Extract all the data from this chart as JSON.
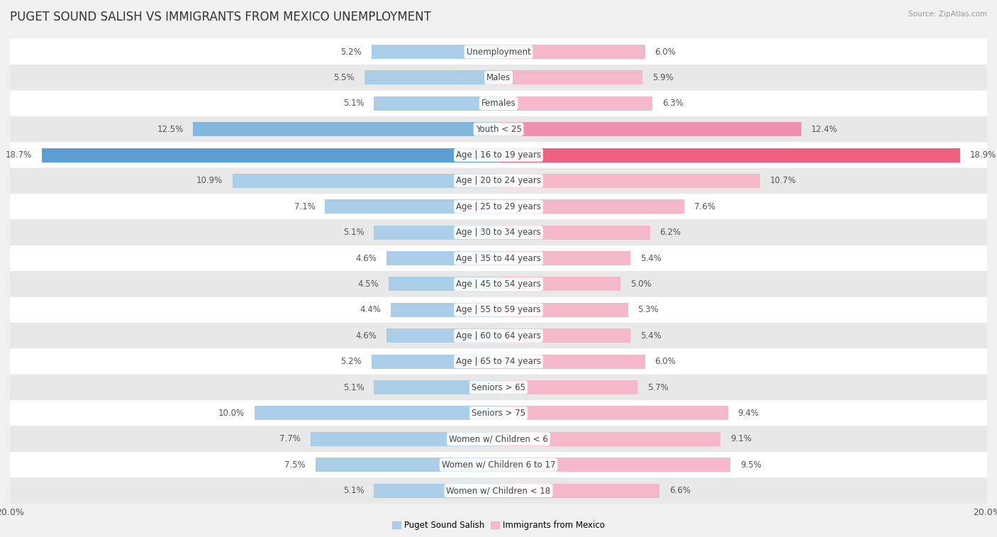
{
  "title": "PUGET SOUND SALISH VS IMMIGRANTS FROM MEXICO UNEMPLOYMENT",
  "source": "Source: ZipAtlas.com",
  "categories": [
    "Unemployment",
    "Males",
    "Females",
    "Youth < 25",
    "Age | 16 to 19 years",
    "Age | 20 to 24 years",
    "Age | 25 to 29 years",
    "Age | 30 to 34 years",
    "Age | 35 to 44 years",
    "Age | 45 to 54 years",
    "Age | 55 to 59 years",
    "Age | 60 to 64 years",
    "Age | 65 to 74 years",
    "Seniors > 65",
    "Seniors > 75",
    "Women w/ Children < 6",
    "Women w/ Children 6 to 17",
    "Women w/ Children < 18"
  ],
  "left_values": [
    5.2,
    5.5,
    5.1,
    12.5,
    18.7,
    10.9,
    7.1,
    5.1,
    4.6,
    4.5,
    4.4,
    4.6,
    5.2,
    5.1,
    10.0,
    7.7,
    7.5,
    5.1
  ],
  "right_values": [
    6.0,
    5.9,
    6.3,
    12.4,
    18.9,
    10.7,
    7.6,
    6.2,
    5.4,
    5.0,
    5.3,
    5.4,
    6.0,
    5.7,
    9.4,
    9.1,
    9.5,
    6.6
  ],
  "left_color_normal": "#aacde8",
  "right_color_normal": "#f5b8cb",
  "left_color_medium": "#82b8df",
  "right_color_medium": "#f090b0",
  "left_color_dark": "#5a9fd4",
  "right_color_dark": "#f06080",
  "left_label": "Puget Sound Salish",
  "right_label": "Immigrants from Mexico",
  "xlim": 20.0,
  "bar_height": 0.55,
  "bg_color": "#f0f0f0",
  "row_color_even": "#ffffff",
  "row_color_odd": "#e8e8e8",
  "title_fontsize": 12,
  "label_fontsize": 8.5,
  "tick_fontsize": 9,
  "value_fontsize": 8.5
}
